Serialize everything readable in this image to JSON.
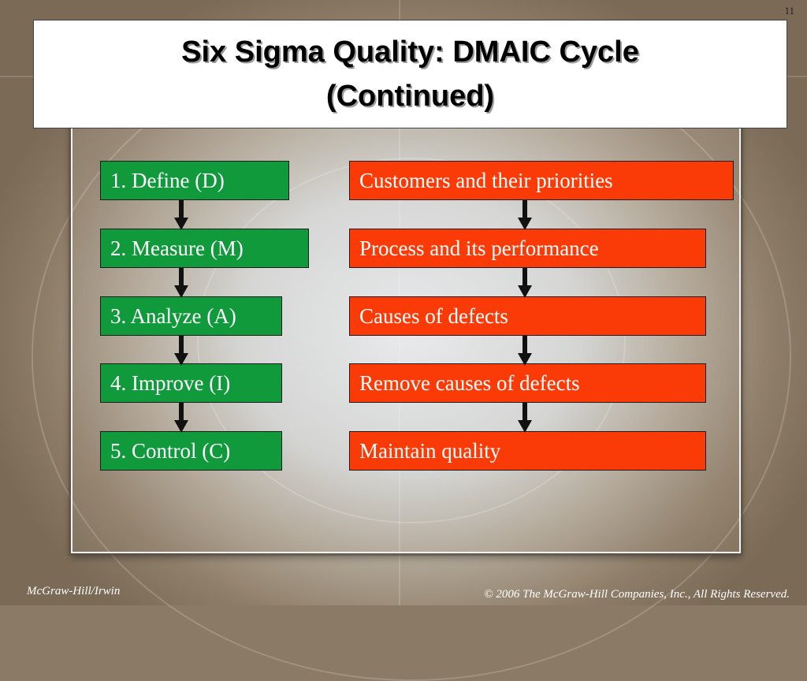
{
  "slide": {
    "number": "11",
    "title_line1": "Six Sigma Quality: DMAIC Cycle",
    "title_line2": "(Continued)"
  },
  "steps": [
    {
      "phase": "1. Define (D)",
      "focus": "Customers and their priorities"
    },
    {
      "phase": "2. Measure (M)",
      "focus": "Process and its performance"
    },
    {
      "phase": "3. Analyze (A)",
      "focus": "Causes of defects"
    },
    {
      "phase": "4. Improve (I)",
      "focus": "Remove causes of defects"
    },
    {
      "phase": "5. Control (C)",
      "focus": "Maintain quality"
    }
  ],
  "colors": {
    "phase_box": "#109a3b",
    "focus_box": "#fb3b07",
    "arrow": "#111111"
  },
  "footer": {
    "publisher": "McGraw-Hill/Irwin",
    "copyright": "© 2006 The McGraw-Hill Companies, Inc., All Rights Reserved."
  }
}
